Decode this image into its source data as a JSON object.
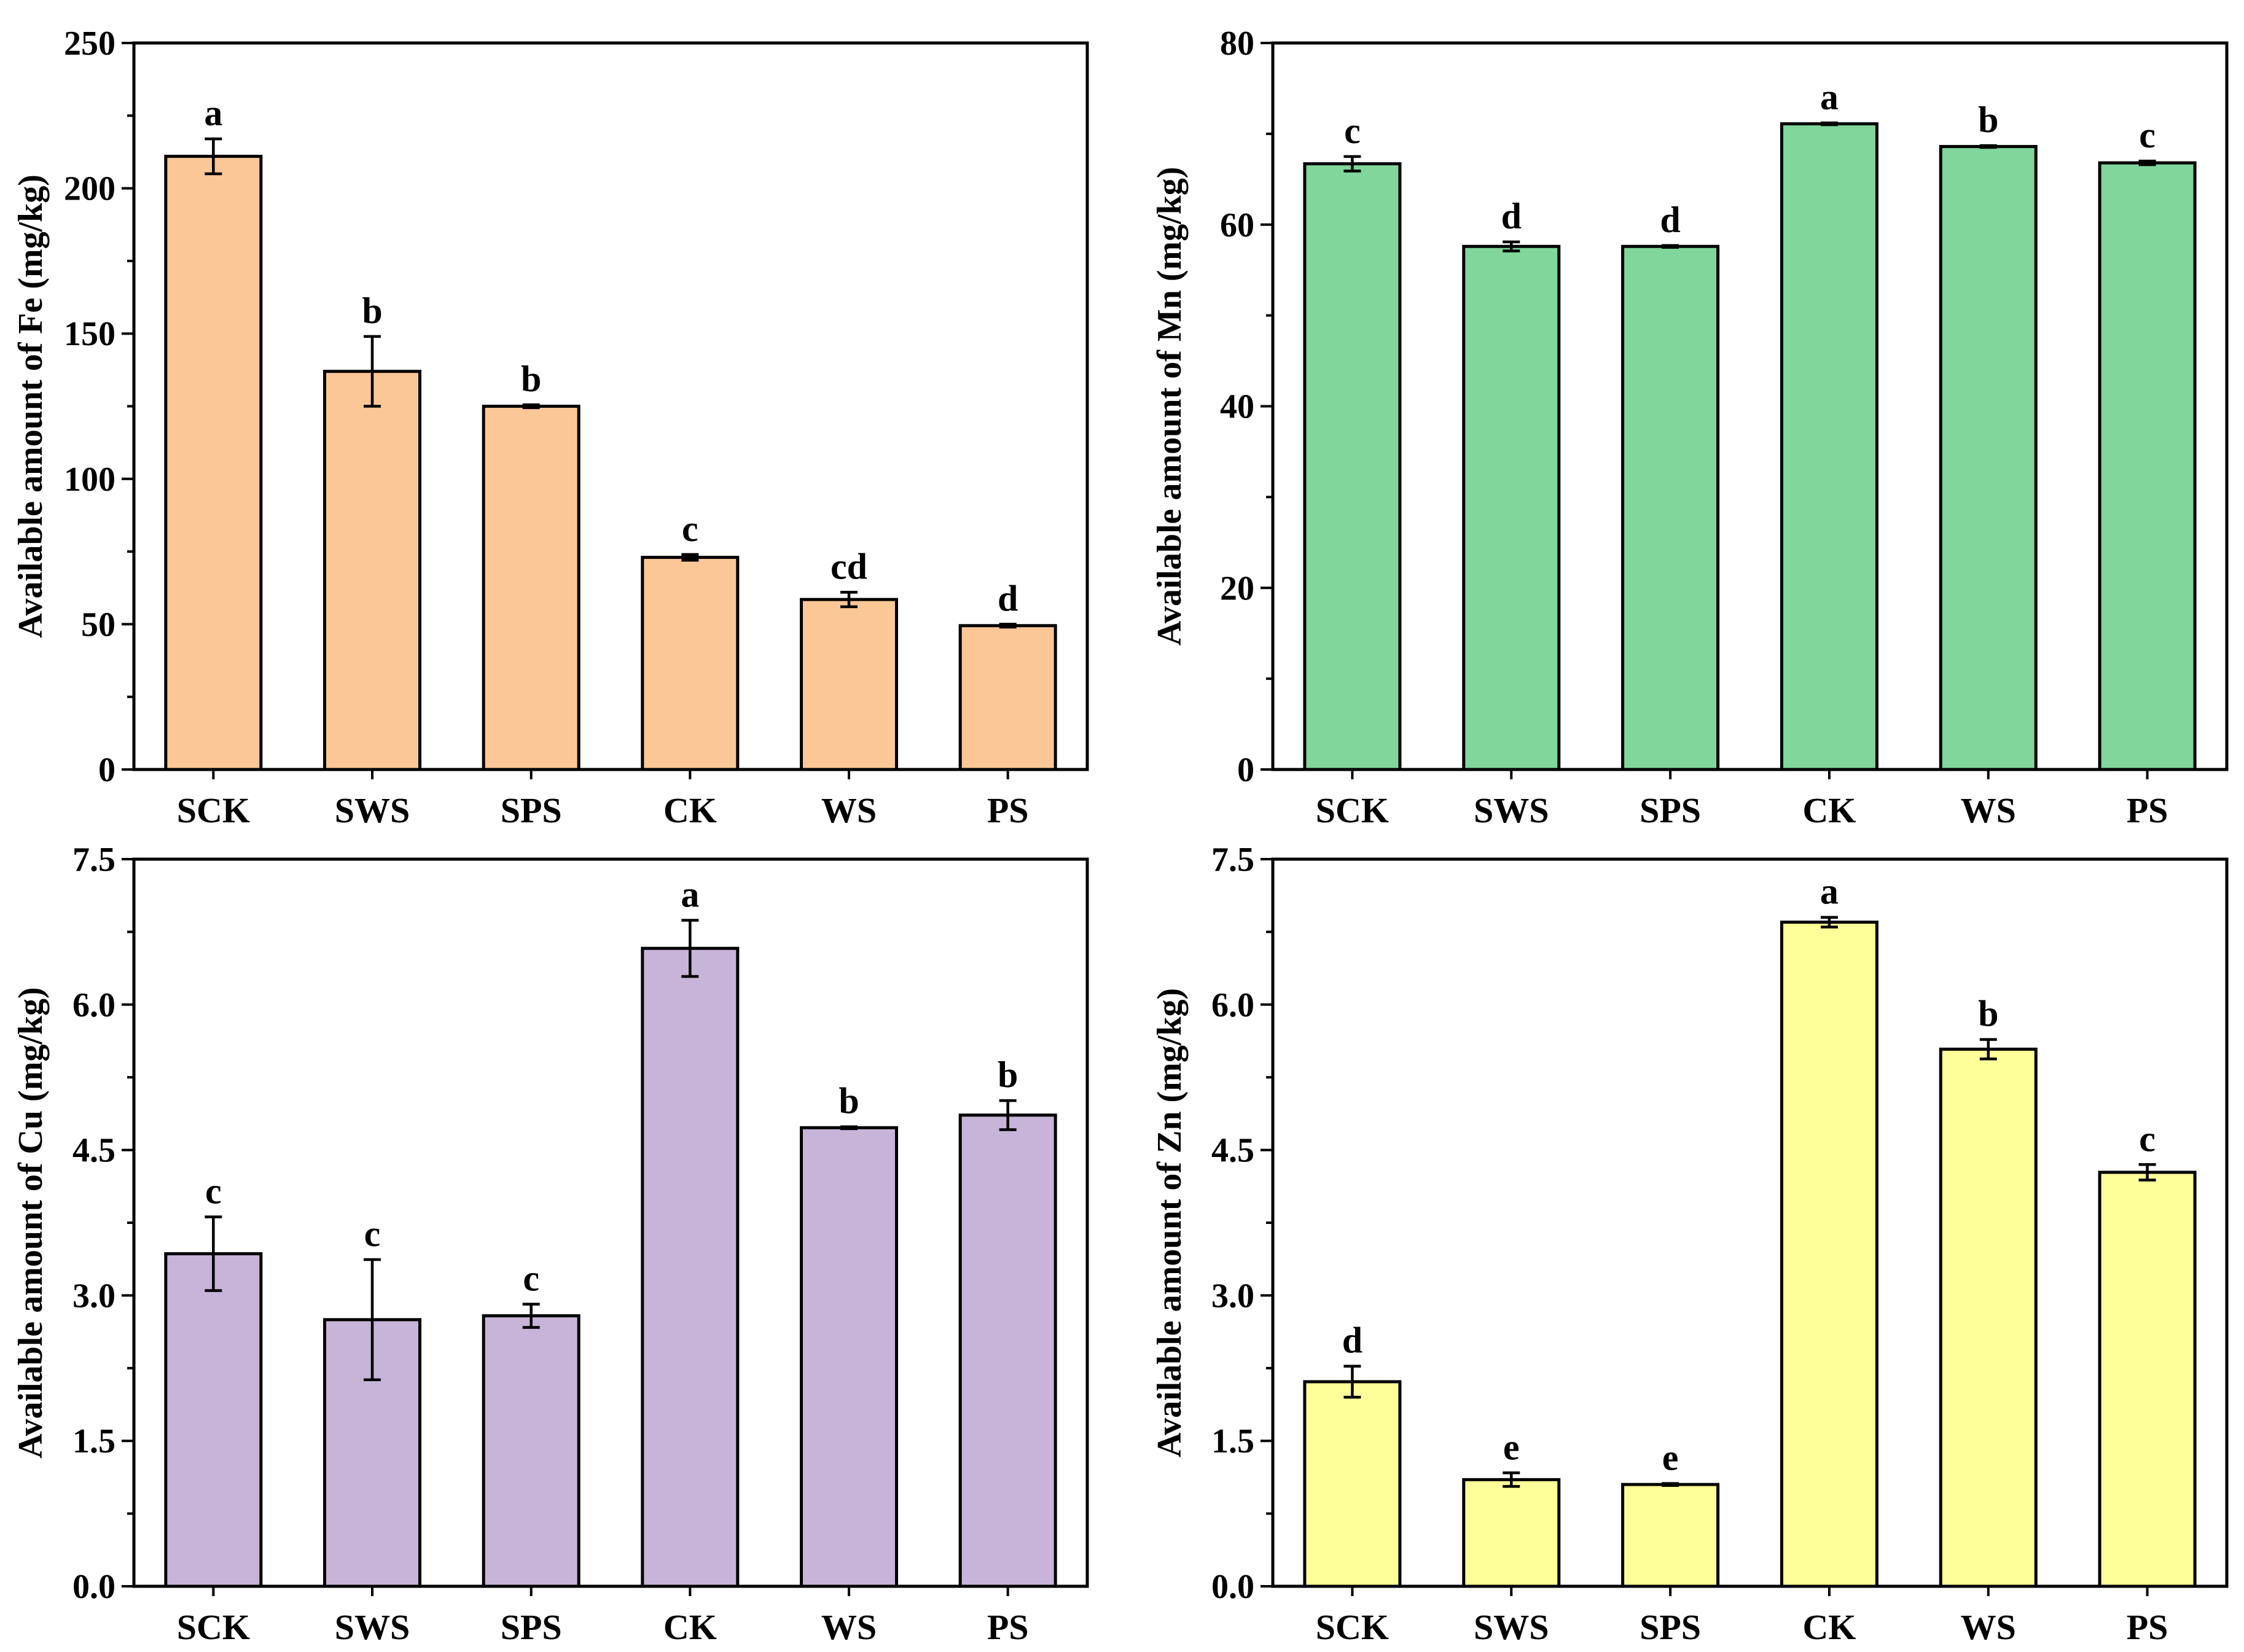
{
  "colors": {
    "fe": "#fcc796",
    "mn": "#80d69b",
    "cu": "#c8b4d8",
    "zn": "#ffff99",
    "outline": "#000000"
  },
  "chart_data": [
    {
      "type": "bar",
      "id": "fe",
      "ylabel": "Available amount of Fe (mg/kg)",
      "categories": [
        "SCK",
        "SWS",
        "SPS",
        "CK",
        "WS",
        "PS"
      ],
      "values": [
        211,
        137,
        125,
        73,
        58.5,
        49.5
      ],
      "errors": [
        6,
        12,
        0.5,
        1,
        2.5,
        0.5
      ],
      "significance": [
        "a",
        "b",
        "b",
        "c",
        "cd",
        "d"
      ],
      "ylim": [
        0,
        250
      ],
      "yticks": [
        "0",
        "50",
        "100",
        "150",
        "200",
        "250"
      ],
      "color_key": "fe"
    },
    {
      "type": "bar",
      "id": "mn",
      "ylabel": "Available amount of Mn (mg/kg)",
      "categories": [
        "SCK",
        "SWS",
        "SPS",
        "CK",
        "WS",
        "PS"
      ],
      "values": [
        66.7,
        57.6,
        57.6,
        71.1,
        68.6,
        66.8
      ],
      "errors": [
        0.8,
        0.5,
        0.1,
        0.1,
        0.1,
        0.2
      ],
      "significance": [
        "c",
        "d",
        "d",
        "a",
        "b",
        "c"
      ],
      "ylim": [
        0,
        80
      ],
      "yticks": [
        "0",
        "20",
        "40",
        "60",
        "80"
      ],
      "color_key": "mn"
    },
    {
      "type": "bar",
      "id": "cu",
      "ylabel": "Available amount of Cu (mg/kg)",
      "categories": [
        "SCK",
        "SWS",
        "SPS",
        "CK",
        "WS",
        "PS"
      ],
      "values": [
        3.43,
        2.75,
        2.79,
        6.58,
        4.73,
        4.86
      ],
      "errors": [
        0.38,
        0.62,
        0.12,
        0.29,
        0.01,
        0.15
      ],
      "significance": [
        "c",
        "c",
        "c",
        "a",
        "b",
        "b"
      ],
      "ylim": [
        0,
        7.5
      ],
      "yticks": [
        "0.0",
        "1.5",
        "3.0",
        "4.5",
        "6.0",
        "7.5"
      ],
      "color_key": "cu"
    },
    {
      "type": "bar",
      "id": "zn",
      "ylabel": "Available amount of Zn (mg/kg)",
      "categories": [
        "SCK",
        "SWS",
        "SPS",
        "CK",
        "WS",
        "PS"
      ],
      "values": [
        2.11,
        1.1,
        1.05,
        6.85,
        5.54,
        4.27
      ],
      "errors": [
        0.16,
        0.07,
        0.01,
        0.05,
        0.1,
        0.08
      ],
      "significance": [
        "d",
        "e",
        "e",
        "a",
        "b",
        "c"
      ],
      "ylim": [
        0,
        7.5
      ],
      "yticks": [
        "0.0",
        "1.5",
        "3.0",
        "4.5",
        "6.0",
        "7.5"
      ],
      "color_key": "zn"
    }
  ]
}
